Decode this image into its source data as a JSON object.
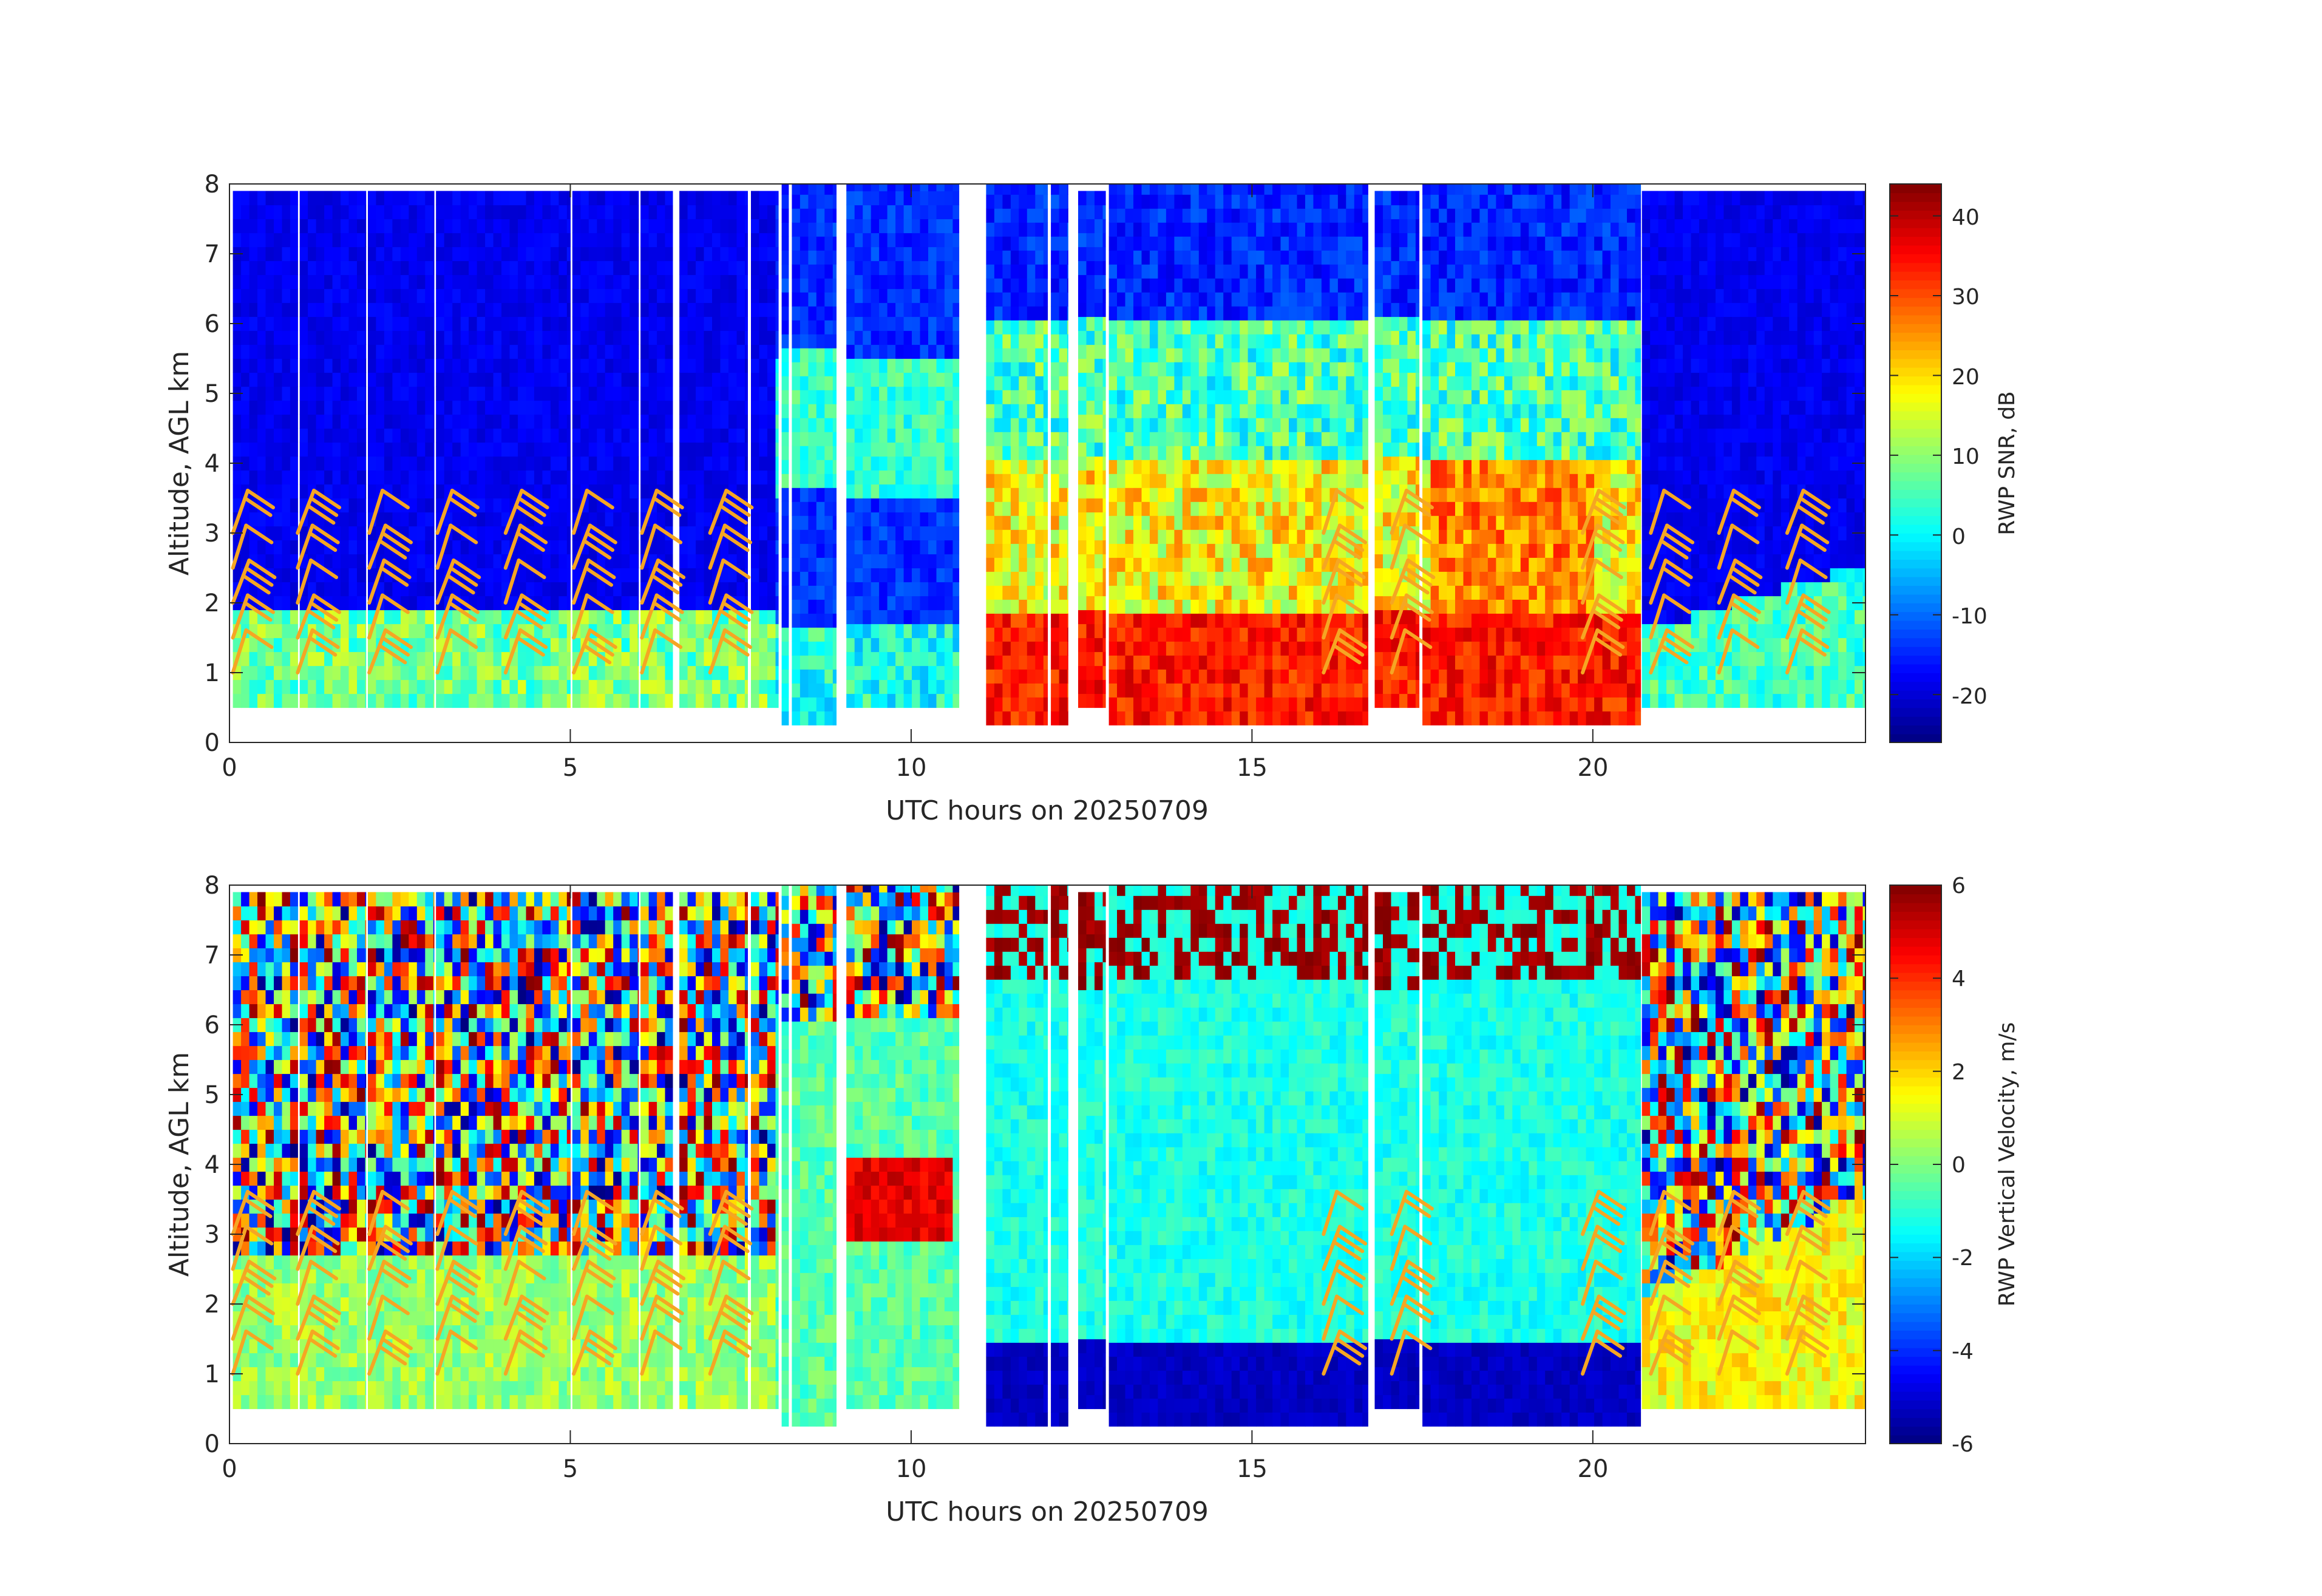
{
  "chart_data": [
    {
      "type": "heatmap",
      "title": "",
      "xlabel": "UTC hours on 20250709",
      "ylabel": "Altitude, AGL km",
      "xlim": [
        0,
        24
      ],
      "ylim": [
        0,
        8
      ],
      "xticks": [
        "0",
        "5",
        "10",
        "15",
        "20"
      ],
      "xtick_values": [
        0,
        5,
        10,
        15,
        20
      ],
      "yticks": [
        "0",
        "1",
        "2",
        "3",
        "4",
        "5",
        "6",
        "7",
        "8"
      ],
      "ytick_values": [
        0,
        1,
        2,
        3,
        4,
        5,
        6,
        7,
        8
      ],
      "grid": false,
      "colormap": "jet",
      "colorbar": {
        "label": "RWP SNR, dB",
        "range": [
          -26,
          44
        ],
        "ticks": [
          "-20",
          "-10",
          "0",
          "10",
          "20",
          "30",
          "40"
        ],
        "tick_values": [
          -20,
          -10,
          0,
          10,
          20,
          30,
          40
        ]
      },
      "field": "snr",
      "wind_barbs": {
        "color": "#f5a623",
        "description": "horizontal wind barbs"
      }
    },
    {
      "type": "heatmap",
      "title": "",
      "xlabel": "UTC hours on 20250709",
      "ylabel": "Altitude, AGL km",
      "xlim": [
        0,
        24
      ],
      "ylim": [
        0,
        8
      ],
      "xticks": [
        "0",
        "5",
        "10",
        "15",
        "20"
      ],
      "xtick_values": [
        0,
        5,
        10,
        15,
        20
      ],
      "yticks": [
        "0",
        "1",
        "2",
        "3",
        "4",
        "5",
        "6",
        "7",
        "8"
      ],
      "ytick_values": [
        0,
        1,
        2,
        3,
        4,
        5,
        6,
        7,
        8
      ],
      "grid": false,
      "colormap": "jet",
      "colorbar": {
        "label": "RWP Vertical Velocity, m/s",
        "range": [
          -6,
          6
        ],
        "ticks": [
          "-6",
          "-4",
          "-2",
          "0",
          "2",
          "4",
          "6"
        ],
        "tick_values": [
          -6,
          -4,
          -2,
          0,
          2,
          4,
          6
        ]
      },
      "field": "velocity",
      "wind_barbs": {
        "color": "#f5a623",
        "description": "horizontal wind barbs"
      }
    }
  ],
  "data_segments": [
    {
      "t0": 0.05,
      "t1": 1.0,
      "top": 7.9,
      "bottom": 0.5
    },
    {
      "t0": 1.03,
      "t1": 2.0,
      "top": 7.9,
      "bottom": 0.5
    },
    {
      "t0": 2.03,
      "t1": 3.0,
      "top": 7.9,
      "bottom": 0.5
    },
    {
      "t0": 3.03,
      "t1": 5.0,
      "top": 7.9,
      "bottom": 0.5
    },
    {
      "t0": 5.03,
      "t1": 6.0,
      "top": 7.9,
      "bottom": 0.5
    },
    {
      "t0": 6.03,
      "t1": 6.5,
      "top": 7.9,
      "bottom": 0.5
    },
    {
      "t0": 6.6,
      "t1": 7.6,
      "top": 7.9,
      "bottom": 0.5
    },
    {
      "t0": 7.65,
      "t1": 8.05,
      "top": 7.9,
      "bottom": 0.5
    },
    {
      "t0": 8.1,
      "t1": 8.2,
      "top": 8.0,
      "bottom": 0.25
    },
    {
      "t0": 8.25,
      "t1": 8.9,
      "top": 8.0,
      "bottom": 0.25
    },
    {
      "t0": 9.05,
      "t1": 10.7,
      "top": 8.0,
      "bottom": 0.5
    },
    {
      "t0": 11.1,
      "t1": 12.0,
      "top": 8.0,
      "bottom": 0.25
    },
    {
      "t0": 12.05,
      "t1": 12.3,
      "top": 8.0,
      "bottom": 0.25
    },
    {
      "t0": 12.45,
      "t1": 12.85,
      "top": 7.9,
      "bottom": 0.5
    },
    {
      "t0": 12.9,
      "t1": 16.7,
      "top": 8.0,
      "bottom": 0.25
    },
    {
      "t0": 16.8,
      "t1": 17.45,
      "top": 7.9,
      "bottom": 0.5
    },
    {
      "t0": 17.5,
      "t1": 20.7,
      "top": 8.0,
      "bottom": 0.25
    },
    {
      "t0": 20.72,
      "t1": 24.0,
      "top": 7.9,
      "bottom": 0.5
    }
  ],
  "barb_columns": [
    0.05,
    1.0,
    2.05,
    3.05,
    4.05,
    5.05,
    6.05,
    7.05,
    16.05,
    17.05,
    19.85,
    20.85,
    21.85,
    22.85
  ],
  "barb_heights": [
    1.0,
    1.5,
    2.0,
    2.5,
    3.0
  ]
}
